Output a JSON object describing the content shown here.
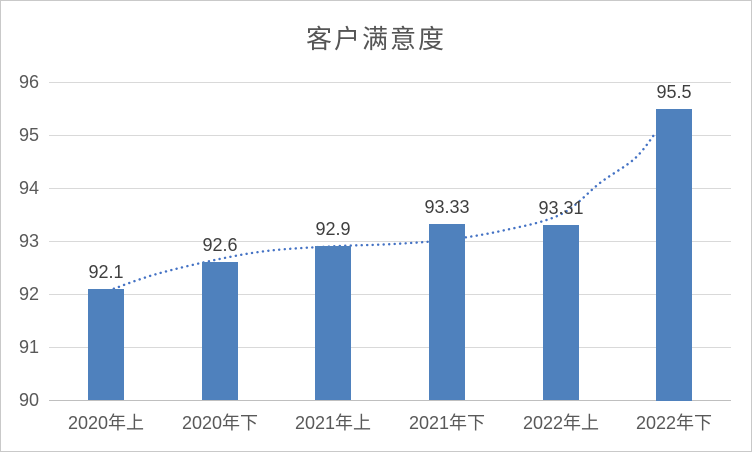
{
  "chart_data": {
    "type": "bar",
    "title": "客户满意度",
    "categories": [
      "2020年上",
      "2020年下",
      "2021年上",
      "2021年下",
      "2022年上",
      "2022年下"
    ],
    "values": [
      92.1,
      92.6,
      92.9,
      93.33,
      93.31,
      95.5
    ],
    "data_labels": [
      "92.1",
      "92.6",
      "92.9",
      "93.33",
      "93.31",
      "95.5"
    ],
    "xlabel": "",
    "ylabel": "",
    "ylim": [
      90,
      96
    ],
    "ytick_step": 1,
    "yticks": [
      "90",
      "91",
      "92",
      "93",
      "94",
      "95",
      "96"
    ],
    "grid": true,
    "legend": "none",
    "bar_color": "#4f81bd",
    "trendline": {
      "style": "dotted",
      "color": "#4472c4",
      "points": [
        [
          0.07,
          92.1
        ],
        [
          0.45,
          92.38
        ],
        [
          1.0,
          92.66
        ],
        [
          1.45,
          92.82
        ],
        [
          2.0,
          92.9
        ],
        [
          2.5,
          92.94
        ],
        [
          3.0,
          93.02
        ],
        [
          3.5,
          93.2
        ],
        [
          4.0,
          93.5
        ],
        [
          4.35,
          94.1
        ],
        [
          4.65,
          94.55
        ],
        [
          4.83,
          95.02
        ]
      ]
    },
    "colors": {
      "gridline": "#d9d9d9",
      "axis_line": "#bfbfbf",
      "tick_label": "#595959",
      "value_label": "#3f3f3f",
      "title": "#555555"
    }
  }
}
